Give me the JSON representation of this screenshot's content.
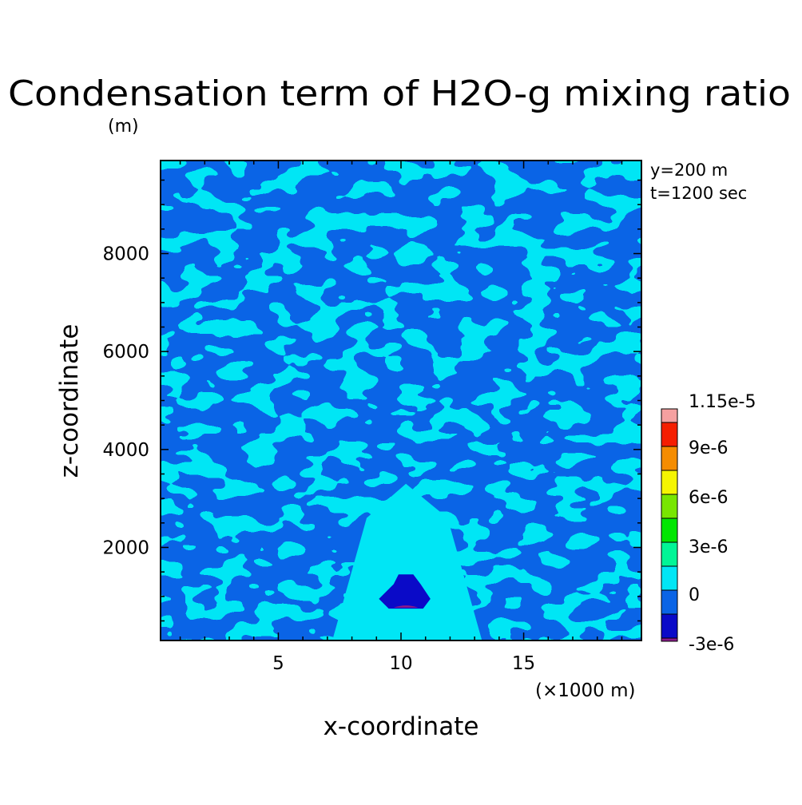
{
  "chart_data": {
    "type": "heatmap",
    "subtype": "filled-contour",
    "title": "Condensation term of H2O-g mixing ratio",
    "title_units": "(m)",
    "xlabel": "x-coordinate",
    "ylabel": "z-coordinate",
    "x_units_label": "(×1000 m)",
    "annotations": [
      "y=200 m",
      "t=1200 sec"
    ],
    "xlim": [
      0.2,
      19.8
    ],
    "ylim": [
      100,
      9900
    ],
    "x_ticks": [
      5,
      10,
      15
    ],
    "y_ticks": [
      2000,
      4000,
      6000,
      8000
    ],
    "colorbar": {
      "levels": [
        -3.5e-06,
        -3e-06,
        -1.5e-06,
        0,
        1.5e-06,
        3e-06,
        4.5e-06,
        6e-06,
        7.5e-06,
        9e-06,
        1.05e-05,
        1.15e-05
      ],
      "colors": [
        "#8b1a8b",
        "#0a0ac8",
        "#0a64e6",
        "#00e6f5",
        "#00f596",
        "#00e600",
        "#78e600",
        "#f5f500",
        "#f58c00",
        "#f51e00",
        "#f5a0a0"
      ],
      "labels": [
        "1.15e-5",
        "9e-6",
        "6e-6",
        "3e-6",
        "0",
        "-3e-6"
      ]
    },
    "field": {
      "background_levels": [
        "-1.5e-6 to 0",
        "0 to 1.5e-6"
      ],
      "minimum": {
        "x": 10.2,
        "z": 800,
        "value": -3.5e-06
      },
      "negative_region": {
        "x_range": [
          9.1,
          11.2
        ],
        "z_range": [
          750,
          1450
        ]
      }
    }
  }
}
